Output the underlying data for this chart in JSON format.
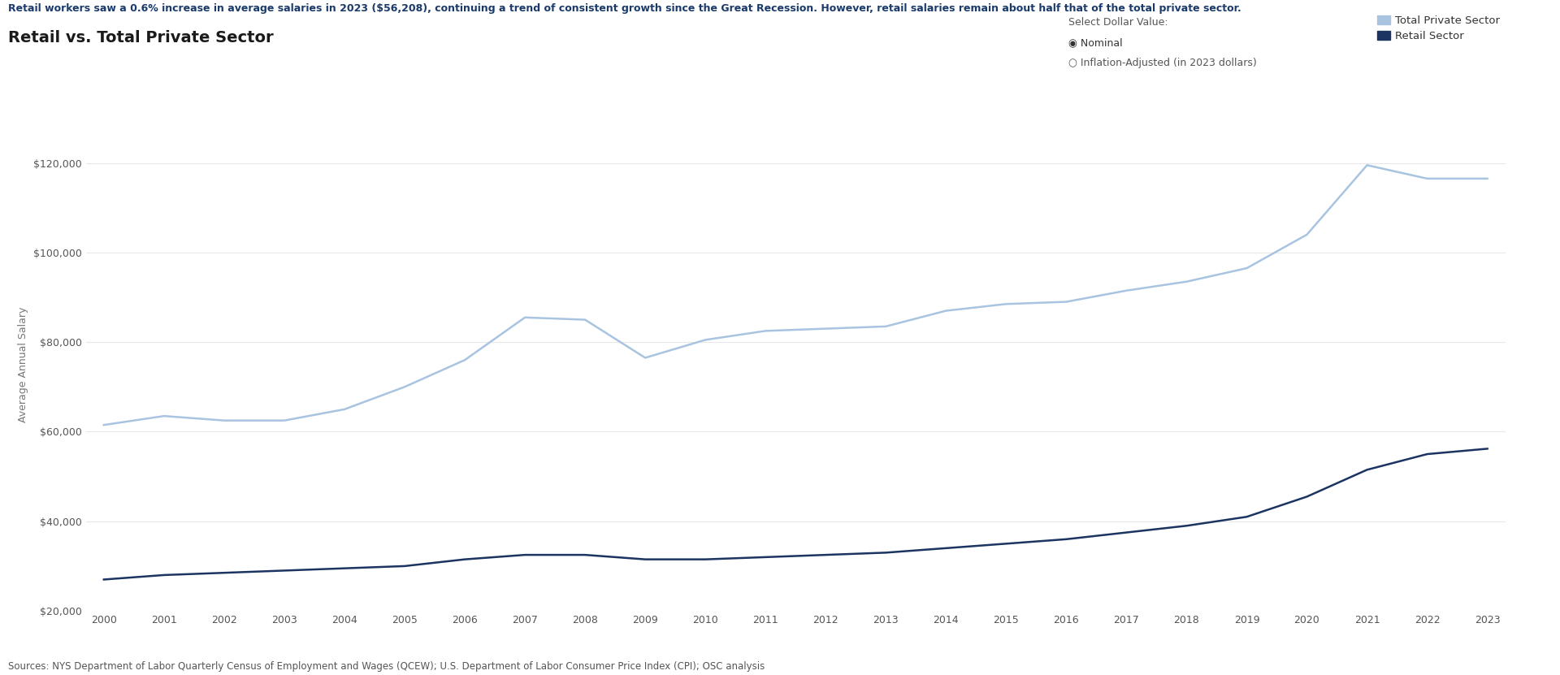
{
  "title_annotation": "Retail workers saw a 0.6% increase in average salaries in 2023 ($56,208), continuing a trend of consistent growth since the Great Recession. However, retail salaries remain about half that of the total private sector.",
  "chart_title": "Retail vs. Total Private Sector",
  "ylabel": "Average Annual Salary",
  "source": "Sources: NYS Department of Labor Quarterly Census of Employment and Wages (QCEW); U.S. Department of Labor Consumer Price Index (CPI); OSC analysis",
  "legend_label1": "Total Private Sector",
  "legend_label2": "Retail Sector",
  "radio_label": "Select Dollar Value:",
  "radio_option1": "Nominal",
  "radio_option2": "Inflation-Adjusted (in 2023 dollars)",
  "color_total": "#a8c4e0",
  "color_retail": "#1c3461",
  "years": [
    2000,
    2001,
    2002,
    2003,
    2004,
    2005,
    2006,
    2007,
    2008,
    2009,
    2010,
    2011,
    2012,
    2013,
    2014,
    2015,
    2016,
    2017,
    2018,
    2019,
    2020,
    2021,
    2022,
    2023
  ],
  "total_private": [
    61500,
    63500,
    62500,
    62500,
    65000,
    70000,
    76000,
    85500,
    85000,
    76500,
    80500,
    82500,
    83000,
    83500,
    87000,
    88500,
    89000,
    91500,
    93500,
    96500,
    104000,
    119500,
    116500,
    116500
  ],
  "retail_sector": [
    27000,
    28000,
    28500,
    29000,
    29500,
    30000,
    31500,
    32500,
    32500,
    31500,
    31500,
    32000,
    32500,
    33000,
    34000,
    35000,
    36000,
    37500,
    39000,
    41000,
    45500,
    51500,
    55000,
    56200
  ],
  "ylim_min": 20000,
  "ylim_max": 130000,
  "yticks": [
    20000,
    40000,
    60000,
    80000,
    100000,
    120000
  ],
  "background_color": "#ffffff",
  "annotation_color": "#1a3a6b",
  "grid_color": "#e8e8e8"
}
